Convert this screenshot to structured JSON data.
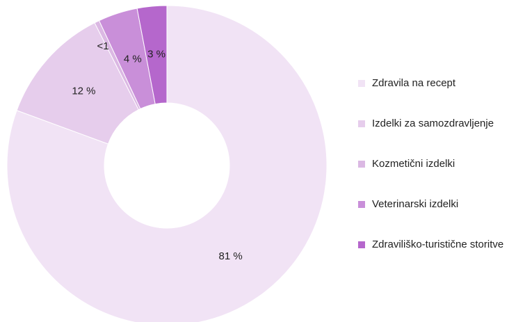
{
  "chart_data": {
    "type": "donut",
    "categories": [
      "Zdravila na recept",
      "Izdelki za samozdravljenje",
      "Kozmetični izdelki",
      "Veterinarski izdelki",
      "Zdraviliško-turistične storitve"
    ],
    "values": [
      81,
      12,
      0.5,
      4,
      3
    ],
    "value_labels": [
      "81 %",
      "12 %",
      "<1 %",
      "4 %",
      "3 %"
    ],
    "colors": [
      "#f1e3f5",
      "#e6cdec",
      "#dbb8e3",
      "#c98fd9",
      "#b567cc"
    ],
    "legend": "right"
  }
}
